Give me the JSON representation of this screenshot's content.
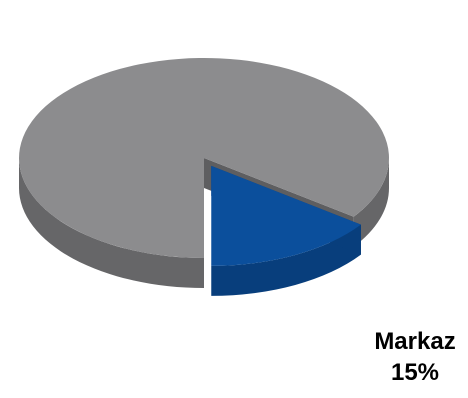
{
  "chart_data": {
    "type": "pie",
    "title": "",
    "slices": [
      {
        "label": "Markaz",
        "value": 15,
        "value_label": "15%",
        "exploded": true,
        "color": "#0B4F9C",
        "side_color": "#083E7C"
      },
      {
        "label": "",
        "value": 85,
        "value_label": "",
        "exploded": false,
        "color": "#8C8C8E",
        "side_color": "#666668"
      }
    ],
    "legend": "none"
  }
}
